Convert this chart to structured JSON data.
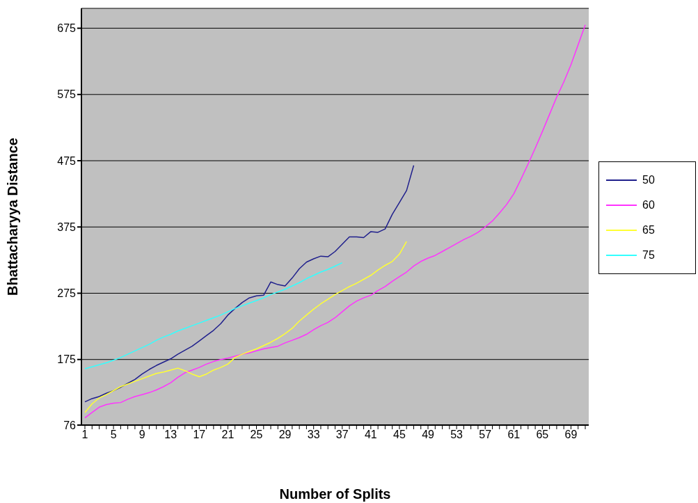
{
  "chart_data": {
    "type": "line",
    "xlabel": "Number of Splits",
    "ylabel": "Bhattacharyya Distance",
    "categories": [
      "1",
      null,
      null,
      null,
      "5",
      null,
      null,
      null,
      "9",
      null,
      null,
      null,
      "13",
      null,
      null,
      null,
      "17",
      null,
      null,
      null,
      "21",
      null,
      null,
      null,
      "25",
      null,
      null,
      null,
      "29",
      null,
      null,
      null,
      "33",
      null,
      null,
      null,
      "37",
      null,
      null,
      null,
      "41",
      null,
      null,
      null,
      "45",
      null,
      null,
      null,
      "49",
      null,
      null,
      null,
      "53",
      null,
      null,
      null,
      "57",
      null,
      null,
      null,
      "61",
      null,
      null,
      null,
      "65",
      null,
      null,
      null,
      "69",
      null,
      null
    ],
    "series": [
      {
        "name": "50",
        "color": "#1f1f8c",
        "values": [
          111,
          116,
          119,
          124,
          128,
          133,
          139,
          145,
          153,
          160,
          166,
          171,
          176,
          183,
          189,
          195,
          203,
          211,
          219,
          229,
          242,
          252,
          261,
          268,
          271,
          272,
          292,
          288,
          286,
          298,
          312,
          322,
          327,
          331,
          330,
          338,
          349,
          360,
          360,
          359,
          368,
          367,
          372,
          394,
          412,
          430,
          468,
          null,
          null,
          null,
          null,
          null,
          null,
          null,
          null,
          null,
          null,
          null,
          null,
          null,
          null,
          null,
          null,
          null,
          null,
          null,
          null,
          null,
          null,
          null,
          null
        ]
      },
      {
        "name": "60",
        "color": "#ff33ff",
        "values": [
          87,
          95,
          103,
          107,
          109,
          110,
          115,
          119,
          122,
          125,
          129,
          134,
          140,
          148,
          155,
          159,
          163,
          168,
          172,
          175,
          177,
          180,
          183,
          185,
          188,
          191,
          193,
          195,
          200,
          204,
          208,
          213,
          220,
          226,
          231,
          238,
          247,
          256,
          263,
          268,
          272,
          279,
          285,
          293,
          300,
          307,
          316,
          323,
          328,
          332,
          338,
          344,
          350,
          356,
          361,
          367,
          375,
          384,
          396,
          409,
          425,
          447,
          470,
          494,
          519,
          545,
          571,
          594,
          620,
          650,
          680
        ]
      },
      {
        "name": "65",
        "color": "#ffff33",
        "values": [
          95,
          108,
          117,
          122,
          128,
          134,
          138,
          142,
          146,
          150,
          154,
          156,
          159,
          162,
          158,
          153,
          149,
          153,
          159,
          163,
          168,
          178,
          183,
          187,
          191,
          196,
          201,
          207,
          214,
          222,
          233,
          242,
          251,
          259,
          266,
          273,
          279,
          285,
          290,
          296,
          302,
          310,
          317,
          323,
          334,
          353,
          null,
          null,
          null,
          null,
          null,
          null,
          null,
          null,
          null,
          null,
          null,
          null,
          null,
          null,
          null,
          null,
          null,
          null,
          null,
          null,
          null,
          null,
          null,
          null,
          null
        ]
      },
      {
        "name": "75",
        "color": "#33ffff",
        "values": [
          161,
          164,
          167,
          170,
          174,
          178,
          183,
          188,
          193,
          198,
          204,
          209,
          213,
          218,
          222,
          226,
          230,
          234,
          238,
          242,
          247,
          252,
          256,
          260,
          264,
          268,
          273,
          277,
          281,
          286,
          291,
          297,
          302,
          307,
          311,
          316,
          321,
          null,
          null,
          null,
          null,
          null,
          null,
          null,
          null,
          null,
          null,
          null,
          null,
          null,
          null,
          null,
          null,
          null,
          null,
          null,
          null,
          null,
          null,
          null,
          null,
          null,
          null,
          null,
          null,
          null,
          null,
          null,
          null,
          null,
          null
        ]
      }
    ],
    "ylim": [
      76,
      705
    ],
    "yticks": [
      76,
      175,
      275,
      375,
      475,
      575,
      675
    ],
    "grid": "y",
    "legend": "right",
    "marker": "none",
    "line_style": "solid"
  }
}
